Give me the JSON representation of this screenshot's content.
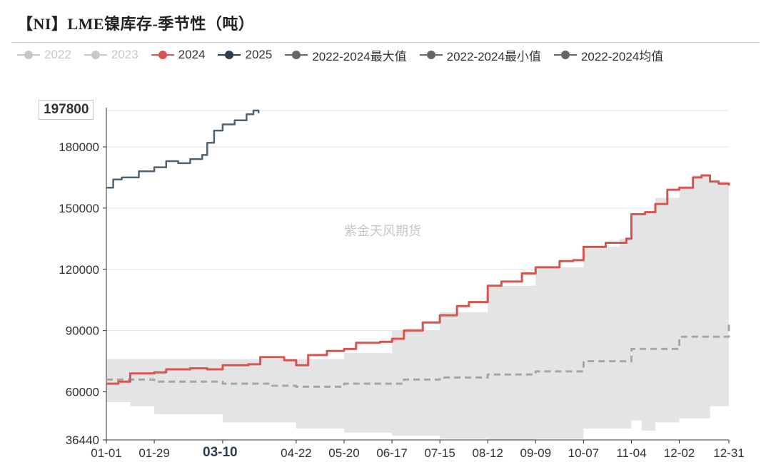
{
  "title": "【NI】LME镍库存-季节性（吨）",
  "watermark": "紫金天风期货",
  "highlight": {
    "y_label": "197800",
    "x_label": "03-10"
  },
  "legend": [
    {
      "label": "2022",
      "color": "#c8c8c8",
      "muted": true
    },
    {
      "label": "2023",
      "color": "#c8c8c8",
      "muted": true
    },
    {
      "label": "2024",
      "color": "#d9534f",
      "muted": false
    },
    {
      "label": "2025",
      "color": "#2c3e50",
      "muted": false
    },
    {
      "label": "2022-2024最大值",
      "color": "#666666",
      "muted": false
    },
    {
      "label": "2022-2024最小值",
      "color": "#666666",
      "muted": false
    },
    {
      "label": "2022-2024均值",
      "color": "#666666",
      "muted": false
    }
  ],
  "chart_data": {
    "type": "line",
    "title": "【NI】LME镍库存-季节性（吨）",
    "xlabel": "",
    "ylabel": "",
    "x_ticks": [
      "01-01",
      "01-29",
      "03-10",
      "04-22",
      "05-20",
      "06-17",
      "07-15",
      "08-12",
      "09-09",
      "10-07",
      "11-04",
      "12-02",
      "12-31"
    ],
    "y_ticks": [
      36440,
      60000,
      90000,
      120000,
      150000,
      180000,
      197800
    ],
    "ylim": [
      36440,
      197800
    ],
    "grid": true,
    "colors": {
      "band": "#e4e4e4",
      "y2024": "#d9534f",
      "y2025": "#4f6275",
      "mean": "#a6a6a6"
    },
    "series": [
      {
        "name": "2022-2024最大值",
        "style": "band-upper",
        "points": [
          [
            "01-01",
            76000
          ],
          [
            "03-10",
            76000
          ],
          [
            "04-22",
            76000
          ],
          [
            "05-20",
            79000
          ],
          [
            "06-17",
            90000
          ],
          [
            "07-15",
            99000
          ],
          [
            "08-12",
            112000
          ],
          [
            "09-09",
            121000
          ],
          [
            "10-07",
            131000
          ],
          [
            "10-28",
            135000
          ],
          [
            "11-04",
            147000
          ],
          [
            "11-18",
            155000
          ],
          [
            "12-02",
            160000
          ],
          [
            "12-10",
            166000
          ],
          [
            "12-20",
            163000
          ],
          [
            "12-31",
            161000
          ]
        ]
      },
      {
        "name": "2022-2024最小值",
        "style": "band-lower",
        "points": [
          [
            "01-01",
            55000
          ],
          [
            "01-15",
            53000
          ],
          [
            "01-29",
            49000
          ],
          [
            "03-10",
            45000
          ],
          [
            "04-22",
            42000
          ],
          [
            "05-20",
            40000
          ],
          [
            "06-17",
            38500
          ],
          [
            "07-15",
            37000
          ],
          [
            "08-12",
            36440
          ],
          [
            "09-09",
            37000
          ],
          [
            "10-07",
            42000
          ],
          [
            "11-04",
            46000
          ],
          [
            "11-10",
            41000
          ],
          [
            "11-18",
            45000
          ],
          [
            "12-02",
            47000
          ],
          [
            "12-20",
            53000
          ],
          [
            "12-31",
            56000
          ]
        ]
      },
      {
        "name": "2022-2024均值",
        "style": "dashed",
        "points": [
          [
            "01-01",
            66000
          ],
          [
            "01-29",
            65000
          ],
          [
            "03-10",
            64000
          ],
          [
            "04-08",
            63000
          ],
          [
            "04-22",
            62500
          ],
          [
            "05-20",
            64000
          ],
          [
            "06-17",
            64000
          ],
          [
            "06-24",
            66000
          ],
          [
            "07-15",
            67000
          ],
          [
            "08-12",
            68500
          ],
          [
            "09-09",
            70000
          ],
          [
            "10-07",
            75000
          ],
          [
            "11-04",
            81000
          ],
          [
            "12-02",
            87000
          ],
          [
            "12-31",
            94000
          ]
        ]
      },
      {
        "name": "2024",
        "style": "solid",
        "points": [
          [
            "01-01",
            64000
          ],
          [
            "01-08",
            65000
          ],
          [
            "01-15",
            69000
          ],
          [
            "01-29",
            69500
          ],
          [
            "02-05",
            71000
          ],
          [
            "02-19",
            71500
          ],
          [
            "03-01",
            71000
          ],
          [
            "03-10",
            73000
          ],
          [
            "03-25",
            73500
          ],
          [
            "04-01",
            77000
          ],
          [
            "04-15",
            75500
          ],
          [
            "04-22",
            73000
          ],
          [
            "04-29",
            78000
          ],
          [
            "05-10",
            80000
          ],
          [
            "05-20",
            81000
          ],
          [
            "05-27",
            84000
          ],
          [
            "06-10",
            84500
          ],
          [
            "06-17",
            86000
          ],
          [
            "06-24",
            90000
          ],
          [
            "07-05",
            94000
          ],
          [
            "07-15",
            97500
          ],
          [
            "07-25",
            102000
          ],
          [
            "08-01",
            104000
          ],
          [
            "08-12",
            112000
          ],
          [
            "08-20",
            114000
          ],
          [
            "09-01",
            118000
          ],
          [
            "09-09",
            121000
          ],
          [
            "09-23",
            124000
          ],
          [
            "10-01",
            124500
          ],
          [
            "10-07",
            131000
          ],
          [
            "10-20",
            133000
          ],
          [
            "11-01",
            135000
          ],
          [
            "11-04",
            147000
          ],
          [
            "11-12",
            148000
          ],
          [
            "11-18",
            152000
          ],
          [
            "11-25",
            159000
          ],
          [
            "12-02",
            160000
          ],
          [
            "12-10",
            165000
          ],
          [
            "12-15",
            166000
          ],
          [
            "12-20",
            163000
          ],
          [
            "12-25",
            162000
          ],
          [
            "12-31",
            161000
          ]
        ]
      },
      {
        "name": "2025",
        "style": "solid",
        "points": [
          [
            "01-01",
            160000
          ],
          [
            "01-05",
            164000
          ],
          [
            "01-10",
            165000
          ],
          [
            "01-20",
            168000
          ],
          [
            "01-29",
            170000
          ],
          [
            "02-05",
            173000
          ],
          [
            "02-12",
            172000
          ],
          [
            "02-19",
            174000
          ],
          [
            "02-26",
            176000
          ],
          [
            "03-01",
            182000
          ],
          [
            "03-05",
            188000
          ],
          [
            "03-10",
            191000
          ],
          [
            "03-17",
            193000
          ],
          [
            "03-24",
            196000
          ],
          [
            "03-28",
            197800
          ],
          [
            "03-31",
            196500
          ]
        ]
      }
    ]
  }
}
